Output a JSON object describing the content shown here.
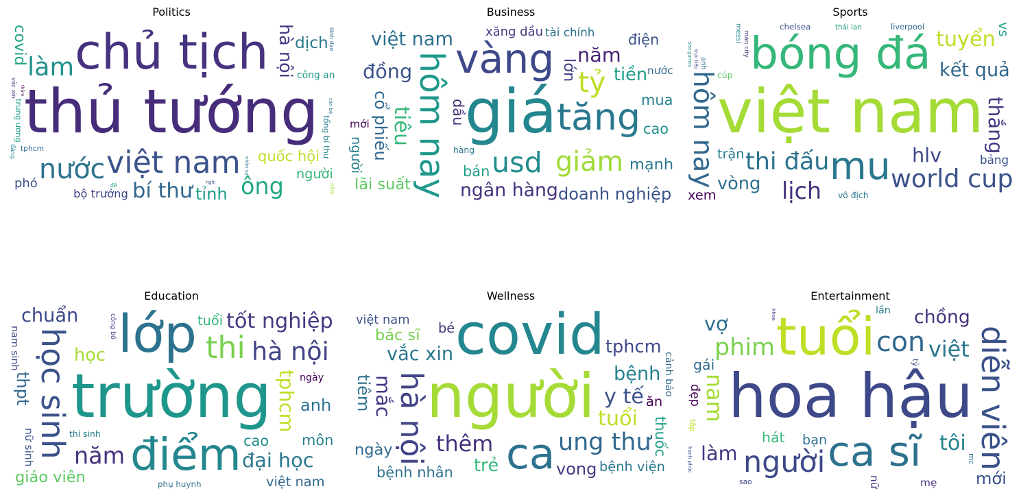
{
  "chart_data": [
    {
      "type": "wordcloud",
      "title": "Politics",
      "words": [
        {
          "text": "thủ tướng",
          "weight": 100,
          "color": "#472c7a"
        },
        {
          "text": "chủ tịch",
          "weight": 78,
          "color": "#46327e"
        },
        {
          "text": "việt nam",
          "weight": 44,
          "color": "#3b528b"
        },
        {
          "text": "quốc hội",
          "weight": 40,
          "color": "#bddf26"
        },
        {
          "text": "nước",
          "weight": 38,
          "color": "#2c728e"
        },
        {
          "text": "bí thư",
          "weight": 36,
          "color": "#31688e"
        },
        {
          "text": "làm",
          "weight": 34,
          "color": "#21918c"
        },
        {
          "text": "ông",
          "weight": 30,
          "color": "#22a884"
        },
        {
          "text": "hà nội",
          "weight": 28,
          "color": "#443983"
        },
        {
          "text": "bộ trưởng",
          "weight": 20,
          "color": "#3e4989"
        },
        {
          "text": "tỉnh",
          "weight": 18,
          "color": "#1f9e89"
        },
        {
          "text": "người",
          "weight": 18,
          "color": "#35b779"
        },
        {
          "text": "dịch",
          "weight": 17,
          "color": "#2a788e"
        },
        {
          "text": "covid",
          "weight": 16,
          "color": "#20a486"
        },
        {
          "text": "trung ương",
          "weight": 16,
          "color": "#1fa187"
        },
        {
          "text": "tổng bí thư",
          "weight": 16,
          "color": "#26828e"
        },
        {
          "text": "phó",
          "weight": 16,
          "color": "#3b528b"
        },
        {
          "text": "công an",
          "weight": 15,
          "color": "#1f978b"
        },
        {
          "text": "tphcm",
          "weight": 14,
          "color": "#31688e"
        },
        {
          "text": "nhân sự",
          "weight": 14,
          "color": "#2d708e"
        },
        {
          "text": "vắc xin",
          "weight": 14,
          "color": "#414487"
        },
        {
          "text": "cán bộ",
          "weight": 14,
          "color": "#2c728e"
        },
        {
          "text": "đảng",
          "weight": 14,
          "color": "#25838e"
        },
        {
          "text": "nghị",
          "weight": 13,
          "color": "#3b528b"
        },
        {
          "text": "lãnh đạo",
          "weight": 12,
          "color": "#31688e"
        },
        {
          "text": "yêu cầu",
          "weight": 12,
          "color": "#287d8e"
        },
        {
          "text": "thăm",
          "weight": 12,
          "color": "#440154"
        },
        {
          "text": "năm",
          "weight": 11,
          "color": "#a5db36"
        },
        {
          "text": "đề",
          "weight": 11,
          "color": "#1e9b8a"
        }
      ]
    },
    {
      "type": "wordcloud",
      "title": "Business",
      "words": [
        {
          "text": "giá",
          "weight": 100,
          "color": "#24868e"
        },
        {
          "text": "vàng",
          "weight": 62,
          "color": "#3e4989"
        },
        {
          "text": "tăng",
          "weight": 56,
          "color": "#2a788e"
        },
        {
          "text": "hôm nay",
          "weight": 50,
          "color": "#1f988b"
        },
        {
          "text": "usd",
          "weight": 40,
          "color": "#228d8d"
        },
        {
          "text": "tỷ",
          "weight": 40,
          "color": "#bddf26"
        },
        {
          "text": "giảm",
          "weight": 38,
          "color": "#a0da39"
        },
        {
          "text": "ngân hàng",
          "weight": 30,
          "color": "#46327e"
        },
        {
          "text": "tiêu",
          "weight": 26,
          "color": "#35b779"
        },
        {
          "text": "năm",
          "weight": 24,
          "color": "#482576"
        },
        {
          "text": "đồng",
          "weight": 24,
          "color": "#3b528b"
        },
        {
          "text": "việt nam",
          "weight": 22,
          "color": "#2c728e"
        },
        {
          "text": "tiền",
          "weight": 20,
          "color": "#1f9e89"
        },
        {
          "text": "cổ phiếu",
          "weight": 18,
          "color": "#31688e"
        },
        {
          "text": "doanh nghiệp",
          "weight": 18,
          "color": "#3b528b"
        },
        {
          "text": "mạnh",
          "weight": 16,
          "color": "#2a788e"
        },
        {
          "text": "lãi suất",
          "weight": 16,
          "color": "#5ec962"
        },
        {
          "text": "xăng dầu",
          "weight": 16,
          "color": "#443983"
        },
        {
          "text": "lớn",
          "weight": 16,
          "color": "#414487"
        },
        {
          "text": "tài chính",
          "weight": 14,
          "color": "#2d708e"
        },
        {
          "text": "mua",
          "weight": 14,
          "color": "#26828e"
        },
        {
          "text": "bán",
          "weight": 14,
          "color": "#1fa187"
        },
        {
          "text": "cao",
          "weight": 14,
          "color": "#21918c"
        },
        {
          "text": "dầu",
          "weight": 14,
          "color": "#46327e"
        },
        {
          "text": "điện",
          "weight": 14,
          "color": "#3b528b"
        },
        {
          "text": "nước",
          "weight": 12,
          "color": "#31688e"
        },
        {
          "text": "hàng",
          "weight": 12,
          "color": "#2a788e"
        },
        {
          "text": "mới",
          "weight": 12,
          "color": "#440154"
        },
        {
          "text": "người",
          "weight": 12,
          "color": "#26828e"
        }
      ]
    },
    {
      "type": "wordcloud",
      "title": "Sports",
      "words": [
        {
          "text": "việt nam",
          "weight": 100,
          "color": "#a5db36"
        },
        {
          "text": "bóng đá",
          "weight": 70,
          "color": "#35b779"
        },
        {
          "text": "mu",
          "weight": 58,
          "color": "#2a788e"
        },
        {
          "text": "hôm nay",
          "weight": 50,
          "color": "#31688e"
        },
        {
          "text": "world cup",
          "weight": 34,
          "color": "#3b528b"
        },
        {
          "text": "thi đấu",
          "weight": 32,
          "color": "#2c728e"
        },
        {
          "text": "lịch",
          "weight": 30,
          "color": "#46327e"
        },
        {
          "text": "tuyển",
          "weight": 26,
          "color": "#bddf26"
        },
        {
          "text": "thắng",
          "weight": 24,
          "color": "#443983"
        },
        {
          "text": "hlv",
          "weight": 24,
          "color": "#3e4989"
        },
        {
          "text": "kết quả",
          "weight": 22,
          "color": "#31688e"
        },
        {
          "text": "vòng",
          "weight": 20,
          "color": "#2d708e"
        },
        {
          "text": "trận",
          "weight": 18,
          "color": "#287d8e"
        },
        {
          "text": "vô địch",
          "weight": 18,
          "color": "#2a788e"
        },
        {
          "text": "man city",
          "weight": 16,
          "color": "#46327e"
        },
        {
          "text": "sea games",
          "weight": 14,
          "color": "#21918c"
        },
        {
          "text": "bảng",
          "weight": 14,
          "color": "#3b528b"
        },
        {
          "text": "trực tiếp",
          "weight": 14,
          "color": "#414487"
        },
        {
          "text": "thái lan",
          "weight": 13,
          "color": "#1fa187"
        },
        {
          "text": "xem",
          "weight": 12,
          "color": "#440154"
        },
        {
          "text": "cúp",
          "weight": 12,
          "color": "#5ec962"
        },
        {
          "text": "messi",
          "weight": 12,
          "color": "#25838e"
        },
        {
          "text": "chelsea",
          "weight": 11,
          "color": "#3b528b"
        },
        {
          "text": "liverpool",
          "weight": 10,
          "color": "#31688e"
        },
        {
          "text": "anh",
          "weight": 12,
          "color": "#2c728e"
        },
        {
          "text": "vs",
          "weight": 12,
          "color": "#1f9e89"
        }
      ]
    },
    {
      "type": "wordcloud",
      "title": "Education",
      "words": [
        {
          "text": "trường",
          "weight": 100,
          "color": "#1f968b"
        },
        {
          "text": "lớp",
          "weight": 84,
          "color": "#2c728e"
        },
        {
          "text": "điểm",
          "weight": 70,
          "color": "#24868e"
        },
        {
          "text": "học sinh",
          "weight": 46,
          "color": "#3b528b"
        },
        {
          "text": "thi",
          "weight": 44,
          "color": "#7ad151"
        },
        {
          "text": "hà nội",
          "weight": 34,
          "color": "#414487"
        },
        {
          "text": "năm",
          "weight": 30,
          "color": "#46327e"
        },
        {
          "text": "tốt nghiệp",
          "weight": 26,
          "color": "#443983"
        },
        {
          "text": "tphcm",
          "weight": 24,
          "color": "#bddf26"
        },
        {
          "text": "đại học",
          "weight": 24,
          "color": "#2a788e"
        },
        {
          "text": "chuẩn",
          "weight": 22,
          "color": "#3e4989"
        },
        {
          "text": "học",
          "weight": 20,
          "color": "#a5db36"
        },
        {
          "text": "anh",
          "weight": 18,
          "color": "#2c728e"
        },
        {
          "text": "thpt",
          "weight": 18,
          "color": "#31688e"
        },
        {
          "text": "giáo viên",
          "weight": 16,
          "color": "#5ec962"
        },
        {
          "text": "môn",
          "weight": 14,
          "color": "#26828e"
        },
        {
          "text": "cao",
          "weight": 14,
          "color": "#228d8d"
        },
        {
          "text": "tuổi",
          "weight": 12,
          "color": "#35b779"
        },
        {
          "text": "nữ sinh",
          "weight": 12,
          "color": "#3b528b"
        },
        {
          "text": "việt nam",
          "weight": 12,
          "color": "#31688e"
        },
        {
          "text": "phụ huynh",
          "weight": 11,
          "color": "#2d708e"
        },
        {
          "text": "thí sinh",
          "weight": 12,
          "color": "#287d8e"
        },
        {
          "text": "công bố",
          "weight": 11,
          "color": "#443983"
        },
        {
          "text": "nam sinh",
          "weight": 10,
          "color": "#3e4989"
        },
        {
          "text": "ngày",
          "weight": 10,
          "color": "#440154"
        }
      ]
    },
    {
      "type": "wordcloud",
      "title": "Wellness",
      "words": [
        {
          "text": "người",
          "weight": 100,
          "color": "#a5db36"
        },
        {
          "text": "covid",
          "weight": 92,
          "color": "#24868e"
        },
        {
          "text": "ca",
          "weight": 66,
          "color": "#2c728e"
        },
        {
          "text": "hà nội",
          "weight": 44,
          "color": "#414487"
        },
        {
          "text": "ung thư",
          "weight": 32,
          "color": "#31688e"
        },
        {
          "text": "thêm",
          "weight": 28,
          "color": "#46327e"
        },
        {
          "text": "y tế",
          "weight": 26,
          "color": "#3b528b"
        },
        {
          "text": "tuổi",
          "weight": 26,
          "color": "#bddf26"
        },
        {
          "text": "mắc",
          "weight": 24,
          "color": "#443983"
        },
        {
          "text": "vắc xin",
          "weight": 22,
          "color": "#2a788e"
        },
        {
          "text": "bệnh",
          "weight": 22,
          "color": "#26828e"
        },
        {
          "text": "trẻ",
          "weight": 20,
          "color": "#35b779"
        },
        {
          "text": "tphcm",
          "weight": 20,
          "color": "#3e4989"
        },
        {
          "text": "tiêm",
          "weight": 18,
          "color": "#2d708e"
        },
        {
          "text": "vong",
          "weight": 18,
          "color": "#443983"
        },
        {
          "text": "bác sĩ",
          "weight": 16,
          "color": "#7ad151"
        },
        {
          "text": "ngày",
          "weight": 16,
          "color": "#31688e"
        },
        {
          "text": "bệnh nhân",
          "weight": 14,
          "color": "#2c728e"
        },
        {
          "text": "thuốc",
          "weight": 14,
          "color": "#1f9e89"
        },
        {
          "text": "bé",
          "weight": 12,
          "color": "#46327e"
        },
        {
          "text": "ăn",
          "weight": 12,
          "color": "#440154"
        },
        {
          "text": "bệnh viện",
          "weight": 12,
          "color": "#2a788e"
        },
        {
          "text": "việt nam",
          "weight": 10,
          "color": "#3b528b"
        },
        {
          "text": "cảnh báo",
          "weight": 10,
          "color": "#31688e"
        }
      ]
    },
    {
      "type": "wordcloud",
      "title": "Entertainment",
      "words": [
        {
          "text": "hoa hậu",
          "weight": 100,
          "color": "#3e4989"
        },
        {
          "text": "tuổi",
          "weight": 84,
          "color": "#bddf26"
        },
        {
          "text": "ca sĩ",
          "weight": 64,
          "color": "#2c728e"
        },
        {
          "text": "diễn viên",
          "weight": 46,
          "color": "#3b528b"
        },
        {
          "text": "người",
          "weight": 42,
          "color": "#3e4989"
        },
        {
          "text": "con",
          "weight": 38,
          "color": "#31688e"
        },
        {
          "text": "phim",
          "weight": 32,
          "color": "#7ad151"
        },
        {
          "text": "chồng",
          "weight": 30,
          "color": "#46327e"
        },
        {
          "text": "nam",
          "weight": 28,
          "color": "#a5db36"
        },
        {
          "text": "việt",
          "weight": 28,
          "color": "#2a788e"
        },
        {
          "text": "tôi",
          "weight": 26,
          "color": "#26828e"
        },
        {
          "text": "làm",
          "weight": 24,
          "color": "#443983"
        },
        {
          "text": "vợ",
          "weight": 24,
          "color": "#2d708e"
        },
        {
          "text": "đẹp",
          "weight": 22,
          "color": "#440154"
        },
        {
          "text": "hát",
          "weight": 20,
          "color": "#35b779"
        },
        {
          "text": "gái",
          "weight": 20,
          "color": "#31688e"
        },
        {
          "text": "mới",
          "weight": 18,
          "color": "#3b528b"
        },
        {
          "text": "bạn",
          "weight": 18,
          "color": "#2c728e"
        },
        {
          "text": "nữ",
          "weight": 18,
          "color": "#443983"
        },
        {
          "text": "mẹ",
          "weight": 18,
          "color": "#46327e"
        },
        {
          "text": "lần",
          "weight": 16,
          "color": "#287d8e"
        },
        {
          "text": "tập",
          "weight": 16,
          "color": "#bddf26"
        },
        {
          "text": "tỷ",
          "weight": 16,
          "color": "#3b528b"
        },
        {
          "text": "sao",
          "weight": 14,
          "color": "#414487"
        },
        {
          "text": "mc",
          "weight": 14,
          "color": "#2a788e"
        },
        {
          "text": "hạnh phúc",
          "weight": 10,
          "color": "#3e4989"
        },
        {
          "text": "khoe",
          "weight": 10,
          "color": "#443983"
        }
      ]
    }
  ]
}
